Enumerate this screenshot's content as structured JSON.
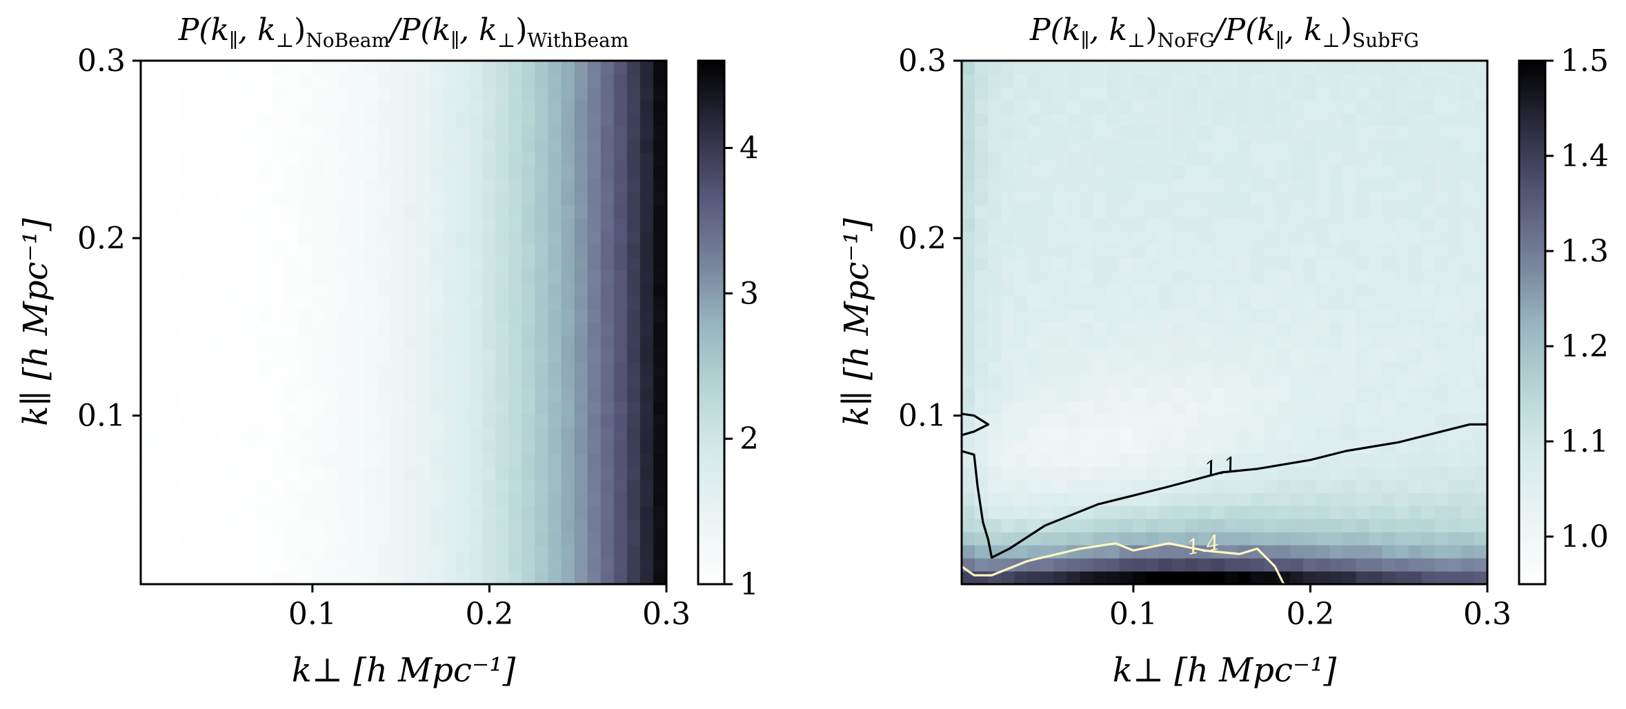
{
  "chart_data": [
    {
      "type": "heatmap",
      "title": "P(k∥, k⊥)NoBeam / P(k∥, k⊥)WithBeam",
      "title_parts": {
        "a": "P(k",
        "a_sub": "∥",
        "b": ", k",
        "b_sub": "⊥",
        "c": ")",
        "c_sub": "NoBeam",
        "d": "/P(k",
        "d_sub": "∥",
        "e": ", k",
        "e_sub": "⊥",
        "f": ")",
        "f_sub": "WithBeam"
      },
      "xlabel": "k⊥ [h Mpc⁻¹]",
      "ylabel": "k∥ [h Mpc⁻¹]",
      "xlim": [
        0.003,
        0.3
      ],
      "ylim": [
        0.005,
        0.3
      ],
      "xticks": [
        0.1,
        0.2,
        0.3
      ],
      "xtick_labels": [
        "0.1",
        "0.2",
        "0.3"
      ],
      "yticks": [
        0.1,
        0.2,
        0.3
      ],
      "ytick_labels": [
        "0.1",
        "0.2",
        "0.3"
      ],
      "colormap": "bone_r",
      "color_range": [
        1,
        4.6
      ],
      "colorbar_ticks": [
        1,
        2,
        3,
        4
      ],
      "colorbar_tick_labels": [
        "1",
        "2",
        "3",
        "4"
      ],
      "values_description_grid": {
        "k_perp": [
          0.01,
          0.05,
          0.1,
          0.15,
          0.2,
          0.25,
          0.28,
          0.3
        ],
        "ratio_at_mid_kpar": [
          1.0,
          1.05,
          1.25,
          1.6,
          2.0,
          2.9,
          3.8,
          4.5
        ]
      },
      "grid": false
    },
    {
      "type": "heatmap",
      "title": "P(k∥, k⊥)NoFG / P(k∥, k⊥)SubFG",
      "title_parts": {
        "a": "P(k",
        "a_sub": "∥",
        "b": ", k",
        "b_sub": "⊥",
        "c": ")",
        "c_sub": "NoFG",
        "d": "/P(k",
        "d_sub": "∥",
        "e": ", k",
        "e_sub": "⊥",
        "f": ")",
        "f_sub": "SubFG"
      },
      "xlabel": "k⊥ [h Mpc⁻¹]",
      "ylabel": "k∥ [h Mpc⁻¹]",
      "xlim": [
        0.003,
        0.3
      ],
      "ylim": [
        0.005,
        0.3
      ],
      "xticks": [
        0.1,
        0.2,
        0.3
      ],
      "xtick_labels": [
        "0.1",
        "0.2",
        "0.3"
      ],
      "yticks": [
        0.1,
        0.2,
        0.3
      ],
      "ytick_labels": [
        "0.1",
        "0.2",
        "0.3"
      ],
      "colormap": "bone_r",
      "color_range": [
        0.95,
        1.5
      ],
      "colorbar_ticks": [
        1.0,
        1.1,
        1.2,
        1.3,
        1.4,
        1.5
      ],
      "colorbar_tick_labels": [
        "1.0",
        "1.1",
        "1.2",
        "1.3",
        "1.4",
        "1.5"
      ],
      "contours": [
        {
          "level": 1.1,
          "label": "1.1",
          "color": "#000000",
          "x": [
            0.003,
            0.01,
            0.012,
            0.015,
            0.018,
            0.02,
            0.03,
            0.05,
            0.08,
            0.1,
            0.12,
            0.15,
            0.17,
            0.2,
            0.22,
            0.25,
            0.27,
            0.29,
            0.3
          ],
          "y": [
            0.08,
            0.078,
            0.06,
            0.04,
            0.03,
            0.02,
            0.025,
            0.038,
            0.05,
            0.055,
            0.06,
            0.068,
            0.07,
            0.075,
            0.08,
            0.085,
            0.09,
            0.095,
            0.095
          ]
        },
        {
          "level": 1.1,
          "label": "",
          "color": "#000000",
          "x": [
            0.003,
            0.01,
            0.018,
            0.01,
            0.003
          ],
          "y": [
            0.101,
            0.1,
            0.095,
            0.091,
            0.089
          ]
        },
        {
          "level": 1.4,
          "label": "1.4",
          "color": "#fff8c0",
          "x": [
            0.003,
            0.01,
            0.02,
            0.04,
            0.07,
            0.09,
            0.1,
            0.12,
            0.14,
            0.16,
            0.17,
            0.18,
            0.185
          ],
          "y": [
            0.015,
            0.01,
            0.01,
            0.018,
            0.025,
            0.028,
            0.024,
            0.028,
            0.024,
            0.022,
            0.025,
            0.015,
            0.005
          ]
        }
      ],
      "grid": false
    }
  ]
}
